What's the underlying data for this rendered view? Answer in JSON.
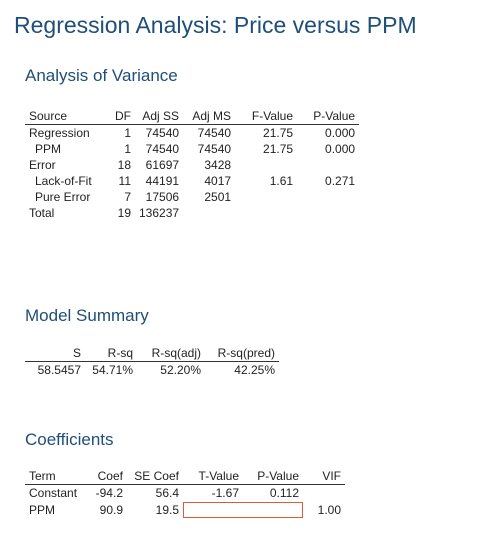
{
  "title": "Regression Analysis: Price versus PPM",
  "anova": {
    "heading": "Analysis of Variance",
    "columns": [
      "Source",
      "DF",
      "Adj SS",
      "Adj MS",
      "F-Value",
      "P-Value"
    ],
    "rows": [
      {
        "source": "Regression",
        "df": "1",
        "adj_ss": "74540",
        "adj_ms": "74540",
        "f": "21.75",
        "p": "0.000"
      },
      {
        "source": "PPM",
        "df": "1",
        "adj_ss": "74540",
        "adj_ms": "74540",
        "f": "21.75",
        "p": "0.000"
      },
      {
        "source": "Error",
        "df": "18",
        "adj_ss": "61697",
        "adj_ms": "3428",
        "f": "",
        "p": ""
      },
      {
        "source": "Lack-of-Fit",
        "df": "11",
        "adj_ss": "44191",
        "adj_ms": "4017",
        "f": "1.61",
        "p": "0.271"
      },
      {
        "source": "Pure Error",
        "df": "7",
        "adj_ss": "17506",
        "adj_ms": "2501",
        "f": "",
        "p": ""
      },
      {
        "source": "Total",
        "df": "19",
        "adj_ss": "136237",
        "adj_ms": "",
        "f": "",
        "p": ""
      }
    ]
  },
  "summary": {
    "heading": "Model Summary",
    "columns": [
      "S",
      "R-sq",
      "R-sq(adj)",
      "R-sq(pred)"
    ],
    "row": {
      "s": "58.5457",
      "rsq": "54.71%",
      "rsq_adj": "52.20%",
      "rsq_pred": "42.25%"
    }
  },
  "coefficients": {
    "heading": "Coefficients",
    "columns": [
      "Term",
      "Coef",
      "SE Coef",
      "T-Value",
      "P-Value",
      "VIF"
    ],
    "rows": [
      {
        "term": "Constant",
        "coef": "-94.2",
        "se": "56.4",
        "t": "-1.67",
        "p": "0.112",
        "vif": ""
      },
      {
        "term": "PPM",
        "coef": "90.9",
        "se": "19.5",
        "t": "",
        "p": "",
        "vif": "1.00"
      }
    ]
  },
  "highlight_color": "#e05a3a"
}
